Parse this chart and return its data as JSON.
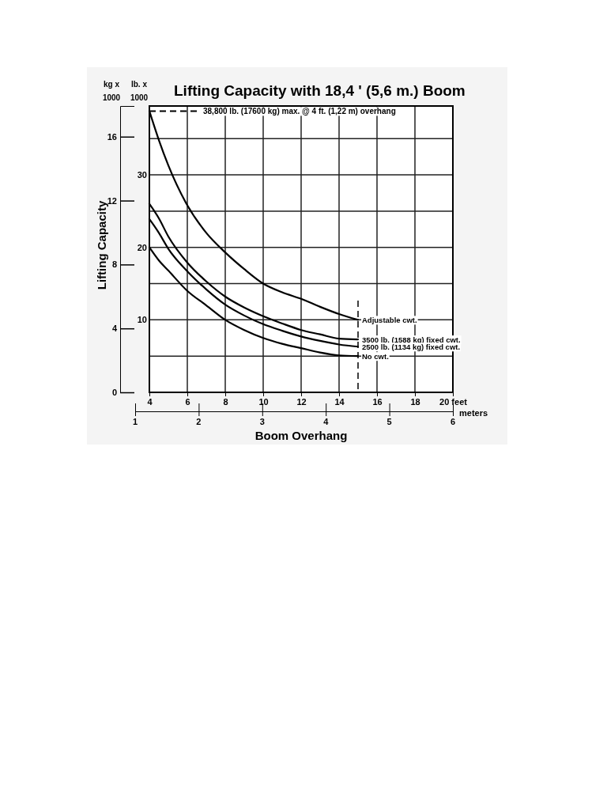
{
  "chart_data": {
    "type": "line",
    "title": "Lifting Capacity with 18,4 ' (5,6 m.) Boom",
    "xlabel": "Boom Overhang",
    "ylabel": "Lifting Capacity",
    "y2label": "lb. x 1000",
    "x2label": "meters",
    "annotations": [
      "kg x 1000"
    ],
    "x": [
      4,
      4.5,
      5,
      6,
      7,
      8,
      9,
      10,
      11,
      12,
      13,
      14,
      15
    ],
    "series": [
      {
        "name": "Adjustable cwt.",
        "color": "#000000",
        "axis": "y2",
        "values": [
          38.8,
          34.8,
          31.3,
          25.8,
          22,
          19.3,
          17,
          15,
          13.8,
          12.9,
          11.8,
          10.8,
          10
        ]
      },
      {
        "name": "3500 lb. (1588 kg) fixed cwt.",
        "color": "#000000",
        "axis": "y2",
        "values": [
          26,
          24,
          21.5,
          17.9,
          15.3,
          13.2,
          11.7,
          10.5,
          9.5,
          8.6,
          8.0,
          7.4,
          7.3
        ]
      },
      {
        "name": "2500 lb. (1134 kg) fixed cwt.",
        "color": "#000000",
        "axis": "y2",
        "values": [
          23.9,
          22,
          19.8,
          16.7,
          14.2,
          12.1,
          10.6,
          9.4,
          8.5,
          7.7,
          7.1,
          6.6,
          6.3
        ]
      },
      {
        "name": "No cwt.",
        "color": "#000000",
        "axis": "y2",
        "values": [
          20,
          18.2,
          16.8,
          14,
          12,
          10,
          8.6,
          7.5,
          6.7,
          6.1,
          5.5,
          5.1,
          5.0
        ]
      }
    ],
    "xlim": [
      4,
      20
    ],
    "xticks": [
      4,
      6,
      8,
      10,
      12,
      14,
      16,
      18,
      {
        "value": 20,
        "label": "20 feet"
      }
    ],
    "ylim": [
      0,
      17.92
    ],
    "yticks": [
      0,
      4,
      8,
      12,
      16
    ],
    "y2lim": [
      0,
      39.5
    ],
    "y2ticks": [
      {
        "value": 5,
        "label": null
      },
      10,
      {
        "value": 15,
        "label": null
      },
      20,
      {
        "value": 25,
        "label": null
      },
      30,
      {
        "value": 35,
        "label": null
      }
    ],
    "x2lim": [
      1,
      6
    ],
    "x2ticks": [
      1,
      2,
      3,
      4,
      5,
      6
    ],
    "ref_lines": [
      {
        "axis": "y2",
        "value": 38.8,
        "label": "38,800 lb. (17600 kg) max. @ 4 ft. (1,22 m) overhang",
        "line_style": "dashed"
      },
      {
        "axis": "x",
        "value": 15,
        "line_style": "dashed"
      }
    ],
    "grid": true,
    "legend": false,
    "marker": "none",
    "line_style": "solid"
  }
}
